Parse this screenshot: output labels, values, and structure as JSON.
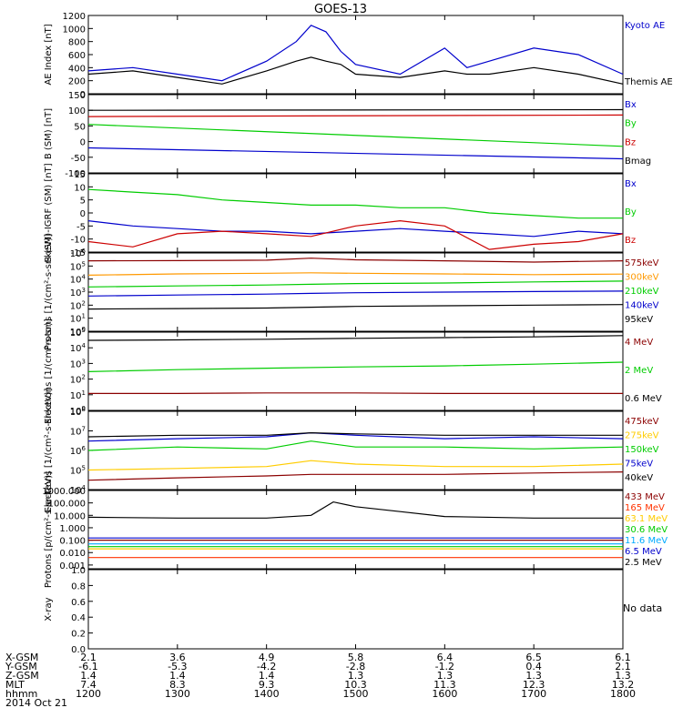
{
  "title": "GOES-13",
  "no_data_label": "No data",
  "date_label": "2014 Oct 21",
  "x_ticks": [
    "1200",
    "1300",
    "1400",
    "1500",
    "1600",
    "1700",
    "1800"
  ],
  "footer_rows": [
    {
      "label": "X-GSM",
      "values": [
        "2.1",
        "3.6",
        "4.9",
        "5.8",
        "6.4",
        "6.5",
        "6.1"
      ]
    },
    {
      "label": "Y-GSM",
      "values": [
        "-6.1",
        "-5.3",
        "-4.2",
        "-2.8",
        "-1.2",
        "0.4",
        "2.1"
      ]
    },
    {
      "label": "Z-GSM",
      "values": [
        "1.4",
        "1.4",
        "1.4",
        "1.3",
        "1.3",
        "1.3",
        "1.3"
      ]
    },
    {
      "label": "MLT",
      "values": [
        "7.4",
        "8.3",
        "9.3",
        "10.3",
        "11.3",
        "12.3",
        "13.2"
      ]
    },
    {
      "label": "hhmm",
      "values": [
        "1200",
        "1300",
        "1400",
        "1500",
        "1600",
        "1700",
        "1800"
      ]
    }
  ],
  "chart_data": [
    {
      "type": "line",
      "ylabel": "AE Index [nT]",
      "ylim": [
        0,
        1200
      ],
      "y_ticks": [
        "0",
        "200",
        "400",
        "600",
        "800",
        "1000",
        "1200"
      ],
      "x": [
        1200,
        1230,
        1300,
        1330,
        1400,
        1420,
        1430,
        1440,
        1450,
        1500,
        1530,
        1600,
        1615,
        1630,
        1700,
        1730,
        1800
      ],
      "series": [
        {
          "name": "Kyoto AE",
          "color": "#0000cc",
          "values": [
            350,
            400,
            300,
            200,
            500,
            800,
            1050,
            950,
            650,
            450,
            300,
            700,
            400,
            500,
            700,
            600,
            300
          ]
        },
        {
          "name": "Themis AE",
          "color": "#000000",
          "values": [
            300,
            350,
            250,
            150,
            350,
            500,
            560,
            500,
            450,
            300,
            250,
            350,
            300,
            300,
            400,
            300,
            150
          ]
        }
      ]
    },
    {
      "type": "line",
      "ylabel": "B (SM) [nT]",
      "ylim": [
        -100,
        150
      ],
      "y_ticks": [
        "-100",
        "-50",
        "0",
        "50",
        "100",
        "150"
      ],
      "x": [
        1200,
        1800
      ],
      "series": [
        {
          "name": "Bx",
          "color": "#0000cc",
          "values": [
            -20,
            -55
          ]
        },
        {
          "name": "By",
          "color": "#00cc00",
          "values": [
            55,
            -15
          ]
        },
        {
          "name": "Bz",
          "color": "#cc0000",
          "values": [
            80,
            85
          ]
        },
        {
          "name": "Bmag",
          "color": "#000000",
          "values": [
            100,
            102
          ]
        }
      ]
    },
    {
      "type": "line",
      "ylabel": "B (SM)-IGRF (SM) [nT]",
      "ylim": [
        -15,
        15
      ],
      "y_ticks": [
        "-15",
        "-10",
        "-5",
        "0",
        "5",
        "10",
        "15"
      ],
      "x": [
        1200,
        1230,
        1300,
        1330,
        1400,
        1430,
        1500,
        1530,
        1600,
        1630,
        1700,
        1730,
        1800
      ],
      "series": [
        {
          "name": "Bx",
          "color": "#0000cc",
          "values": [
            -3,
            -5,
            -6,
            -7,
            -7,
            -8,
            -7,
            -6,
            -7,
            -8,
            -9,
            -7,
            -8
          ]
        },
        {
          "name": "By",
          "color": "#00cc00",
          "values": [
            9,
            8,
            7,
            5,
            4,
            3,
            3,
            2,
            2,
            0,
            -1,
            -2,
            -2
          ]
        },
        {
          "name": "Bz",
          "color": "#cc0000",
          "values": [
            -11,
            -13,
            -8,
            -7,
            -8,
            -9,
            -5,
            -3,
            -5,
            -14,
            -12,
            -11,
            -8
          ]
        }
      ]
    },
    {
      "type": "line",
      "ylabel": "Protons [1/(cm²-s-sr-keV)]",
      "scale": "log",
      "ylim": [
        1,
        1000000
      ],
      "y_ticks": [
        "10^0",
        "10^1",
        "10^2",
        "10^3",
        "10^4",
        "10^5",
        "10^6"
      ],
      "x": [
        1200,
        1300,
        1400,
        1430,
        1500,
        1600,
        1700,
        1800
      ],
      "series": [
        {
          "name": "575keV",
          "color": "#8b0000",
          "values": [
            250000,
            260000,
            280000,
            400000,
            300000,
            250000,
            200000,
            250000
          ]
        },
        {
          "name": "300keV",
          "color": "#ff9900",
          "values": [
            20000,
            25000,
            28000,
            30000,
            28000,
            25000,
            22000,
            24000
          ]
        },
        {
          "name": "210keV",
          "color": "#00cc00",
          "values": [
            2500,
            3000,
            3500,
            4000,
            4500,
            5000,
            6000,
            7000
          ]
        },
        {
          "name": "140keV",
          "color": "#0000cc",
          "values": [
            500,
            600,
            700,
            800,
            900,
            1000,
            1100,
            1200
          ]
        },
        {
          "name": "95keV",
          "color": "#000000",
          "values": [
            50,
            55,
            60,
            70,
            80,
            90,
            100,
            110
          ]
        }
      ]
    },
    {
      "type": "line",
      "ylabel": "Electrons [1/(cm²-s-sr)]",
      "scale": "log",
      "ylim": [
        1,
        100000
      ],
      "y_ticks": [
        "10^0",
        "10^1",
        "10^2",
        "10^3",
        "10^4",
        "10^5"
      ],
      "x": [
        1200,
        1300,
        1400,
        1500,
        1600,
        1700,
        1800
      ],
      "series": [
        {
          "name": "4 MeV",
          "color": "#8b0000",
          "values": [
            12,
            12,
            13,
            13,
            12,
            12,
            12
          ]
        },
        {
          "name": "2 MeV",
          "color": "#00cc00",
          "values": [
            300,
            400,
            500,
            600,
            700,
            900,
            1200
          ]
        },
        {
          "name": "0.6 MeV",
          "color": "#000000",
          "values": [
            30000,
            32000,
            35000,
            40000,
            45000,
            50000,
            60000
          ]
        }
      ]
    },
    {
      "type": "line",
      "ylabel": "Electrons [1/(cm²-s-sr-keV)]",
      "scale": "log",
      "ylim": [
        10000,
        100000000
      ],
      "y_ticks": [
        "10^4",
        "10^5",
        "10^6",
        "10^7",
        "10^8"
      ],
      "x": [
        1200,
        1300,
        1400,
        1430,
        1500,
        1600,
        1700,
        1800
      ],
      "series": [
        {
          "name": "475keV",
          "color": "#8b0000",
          "values": [
            30000,
            40000,
            50000,
            60000,
            60000,
            60000,
            70000,
            80000
          ]
        },
        {
          "name": "275keV",
          "color": "#ffcc00",
          "values": [
            100000,
            120000,
            150000,
            300000,
            200000,
            150000,
            150000,
            200000
          ]
        },
        {
          "name": "150keV",
          "color": "#00cc00",
          "values": [
            1000000,
            1500000,
            1200000,
            3000000,
            1500000,
            1500000,
            1200000,
            1500000
          ]
        },
        {
          "name": "75keV",
          "color": "#0000cc",
          "values": [
            3000000,
            4000000,
            5000000,
            8000000,
            6000000,
            4000000,
            5000000,
            4000000
          ]
        },
        {
          "name": "40keV",
          "color": "#000000",
          "values": [
            5000000,
            6000000,
            6000000,
            8000000,
            7000000,
            6000000,
            6000000,
            6000000
          ]
        }
      ]
    },
    {
      "type": "line",
      "ylabel": "Protons [p/(cm²-s-sr-keV)]",
      "scale": "log",
      "ylim": [
        0.0005,
        1000
      ],
      "y_ticks": [
        "0.001",
        "0.010",
        "0.100",
        "1.000",
        "10.000",
        "100.000",
        "1000.000"
      ],
      "x": [
        1200,
        1300,
        1400,
        1430,
        1445,
        1500,
        1530,
        1600,
        1700,
        1800
      ],
      "series": [
        {
          "name": "433 MeV",
          "color": "#8b0000",
          "values": [
            0.1,
            0.1,
            0.1,
            0.1,
            0.1,
            0.1,
            0.1,
            0.1,
            0.1,
            0.1
          ]
        },
        {
          "name": "165 MeV",
          "color": "#ff3300",
          "values": [
            0.004,
            0.004,
            0.004,
            0.004,
            0.004,
            0.004,
            0.004,
            0.004,
            0.004,
            0.004
          ]
        },
        {
          "name": "63.1 MeV",
          "color": "#ffcc00",
          "values": [
            0.02,
            0.02,
            0.02,
            0.02,
            0.02,
            0.02,
            0.02,
            0.02,
            0.02,
            0.02
          ]
        },
        {
          "name": "30.6 MeV",
          "color": "#00cc00",
          "values": [
            0.03,
            0.03,
            0.03,
            0.03,
            0.03,
            0.03,
            0.03,
            0.03,
            0.03,
            0.03
          ]
        },
        {
          "name": "11.6 MeV",
          "color": "#00aaff",
          "values": [
            0.05,
            0.05,
            0.05,
            0.05,
            0.05,
            0.05,
            0.05,
            0.05,
            0.05,
            0.05
          ]
        },
        {
          "name": "6.5 MeV",
          "color": "#0000cc",
          "values": [
            0.15,
            0.15,
            0.15,
            0.15,
            0.15,
            0.15,
            0.15,
            0.15,
            0.15,
            0.15
          ]
        },
        {
          "name": "2.5 MeV",
          "color": "#000000",
          "values": [
            7,
            6,
            6,
            10,
            120,
            50,
            20,
            8,
            6,
            6
          ]
        }
      ]
    },
    {
      "type": "line",
      "ylabel": "X-ray",
      "ylim": [
        0,
        1
      ],
      "y_ticks": [
        "0.0",
        "0.2",
        "0.4",
        "0.6",
        "0.8",
        "1.0"
      ],
      "series": []
    }
  ]
}
